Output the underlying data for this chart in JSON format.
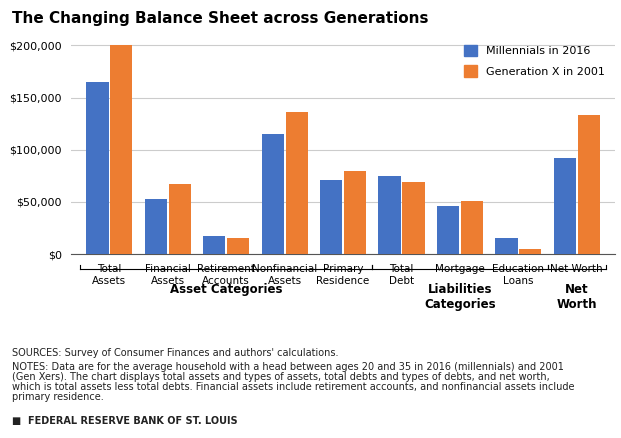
{
  "title": "The Changing Balance Sheet across Generations",
  "categories": [
    "Total\nAssets",
    "Financial\nAssets",
    "Retirement\nAccounts",
    "Nonfinancial\nAssets",
    "Primary\nResidence",
    "Total\nDebt",
    "Mortgage",
    "Education\nLoans",
    "Net Worth"
  ],
  "millennials": [
    165000,
    53000,
    17000,
    115000,
    71000,
    75000,
    46000,
    15000,
    92000
  ],
  "genx": [
    200000,
    67000,
    15000,
    136000,
    80000,
    69000,
    51000,
    5000,
    133000
  ],
  "color_millennials": "#4472C4",
  "color_genx": "#ED7D31",
  "legend_labels": [
    "Millennials in 2016",
    "Generation X in 2001"
  ],
  "ylim": [
    0,
    210000
  ],
  "yticks": [
    0,
    50000,
    100000,
    150000,
    200000
  ],
  "sources_text": "SOURCES: Survey of Consumer Finances and authors' calculations.",
  "notes_line1": "NOTES: Data are for the average household with a head between ages 20 and 35 in 2016 (millennials) and 2001",
  "notes_line2": "(Gen Xers). The chart displays total assets and types of assets, total debts and types of debts, and net worth,",
  "notes_line3": "which is total assets less total debts. Financial assets include retirement accounts, and nonfinancial assets include",
  "notes_line4": "primary residence.",
  "footer_text": "■  FEDERAL RESERVE BANK OF ST. LOUIS",
  "background_color": "#FFFFFF",
  "grid_color": "#CCCCCC"
}
